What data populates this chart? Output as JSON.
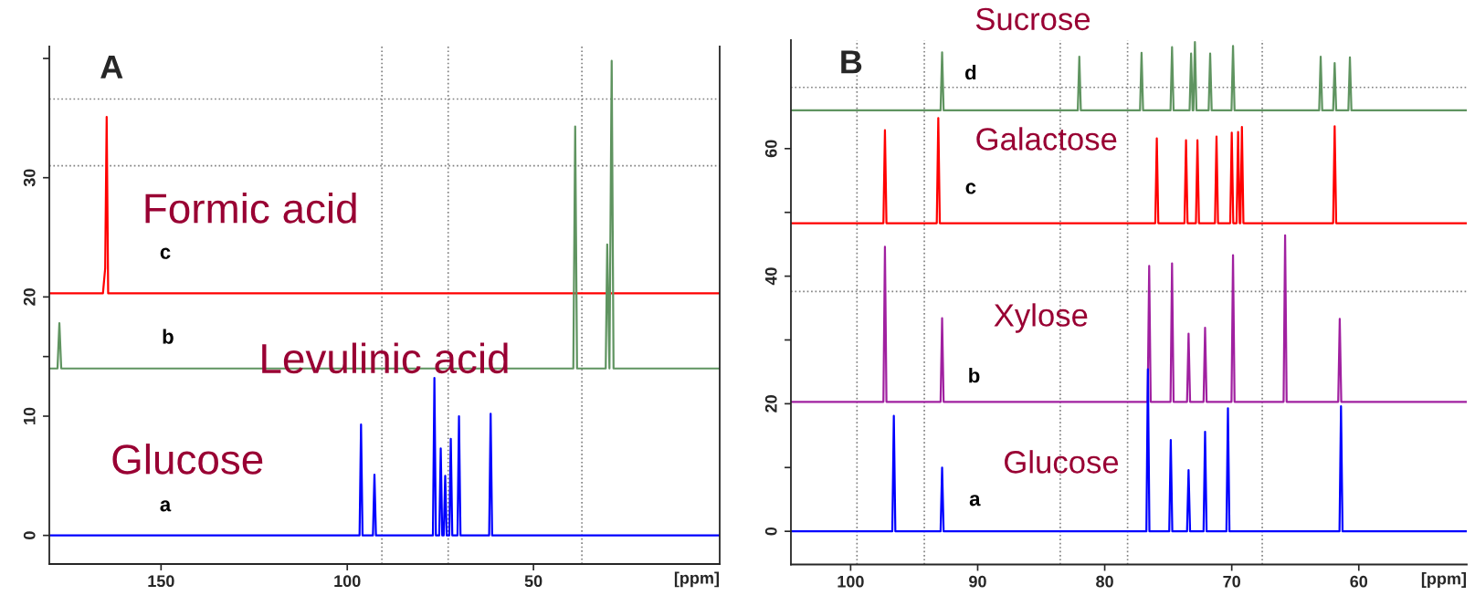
{
  "chart_data": [
    {
      "type": "line",
      "title": "A",
      "xlabel": "[ppm]",
      "xlim": [
        180,
        0
      ],
      "xticks": [
        150,
        100,
        50
      ],
      "ylim": [
        -2.4,
        41
      ],
      "yticks": [
        0,
        10,
        {
          "value": 15,
          "label": null
        },
        20,
        30,
        {
          "value": 40,
          "label": null
        }
      ],
      "grid": false,
      "legend": false,
      "marker": "none",
      "line_style": "solid",
      "ref_lines": [
        {
          "axis": "x",
          "value": 90.7,
          "color": "#808080",
          "line_style": "dotted"
        },
        {
          "axis": "x",
          "value": 72.9,
          "color": "#808080",
          "line_style": "dotted"
        },
        {
          "axis": "x",
          "value": 37,
          "color": "#808080",
          "line_style": "dotted"
        },
        {
          "axis": "y",
          "value": 36.6,
          "color": "#808080",
          "line_style": "dotted"
        },
        {
          "axis": "y",
          "value": 31,
          "color": "#808080",
          "line_style": "dotted"
        }
      ],
      "annotations": [
        "Formic acid",
        "Levulinic acid",
        "Glucose"
      ],
      "series": [
        {
          "name": "c",
          "color": "#ff0000",
          "x": [
            180,
            165.6,
            165.0,
            164.6,
            164.2,
            0
          ],
          "values": [
            20.3,
            20.3,
            22.4,
            35.1,
            20.3,
            20.3
          ]
        },
        {
          "name": "b",
          "color": "#5f9460",
          "x": [
            180,
            177.8,
            177.3,
            176.8,
            39.3,
            38.8,
            38.3,
            30.6,
            30.2,
            29.6,
            29.0,
            28.5,
            0
          ],
          "values": [
            14,
            14,
            17.8,
            14,
            14,
            34.3,
            14,
            14,
            24.4,
            14,
            39.8,
            14,
            14
          ]
        },
        {
          "name": "a",
          "color": "#0000ff",
          "x": [
            180,
            96.7,
            96.3,
            95.9,
            93.1,
            92.7,
            92.3,
            77.0,
            76.6,
            76.2,
            75.3,
            74.9,
            74.5,
            74.1,
            73.7,
            73.3,
            72.6,
            72.2,
            71.8,
            70.4,
            70.0,
            69.6,
            61.9,
            61.5,
            61.1,
            0
          ],
          "values": [
            0,
            0,
            9.3,
            0,
            0,
            5.1,
            0,
            0,
            13.2,
            0,
            0,
            7.3,
            0,
            0,
            5.0,
            0,
            0,
            8.1,
            0,
            0,
            10.0,
            0,
            0,
            10.2,
            0,
            0
          ]
        }
      ]
    },
    {
      "type": "line",
      "title": "B",
      "xlabel": "[ppm]",
      "xlim": [
        104.7,
        51.5
      ],
      "xticks": [
        100,
        90,
        80,
        70,
        60
      ],
      "ylim": [
        -5.2,
        77
      ],
      "yticks": [
        0,
        {
          "value": 10,
          "label": null
        },
        20,
        {
          "value": 30,
          "label": null
        },
        40,
        {
          "value": 50,
          "label": null
        },
        60
      ],
      "grid": false,
      "legend": false,
      "marker": "none",
      "line_style": "solid",
      "ref_lines": [
        {
          "axis": "x",
          "value": 99.5,
          "color": "#808080",
          "line_style": "dotted"
        },
        {
          "axis": "x",
          "value": 94.2,
          "color": "#808080",
          "line_style": "dotted"
        },
        {
          "axis": "x",
          "value": 83.5,
          "color": "#808080",
          "line_style": "dotted"
        },
        {
          "axis": "x",
          "value": 78.2,
          "color": "#808080",
          "line_style": "dotted"
        },
        {
          "axis": "x",
          "value": 67.6,
          "color": "#808080",
          "line_style": "dotted"
        },
        {
          "axis": "y",
          "value": 69.6,
          "color": "#808080",
          "line_style": "dotted"
        },
        {
          "axis": "y",
          "value": 37.6,
          "color": "#808080",
          "line_style": "dotted"
        }
      ],
      "annotations": [
        "Sucrose",
        "Galactose",
        "Xylose",
        "Glucose"
      ],
      "series": [
        {
          "name": "d",
          "color": "#5f9460",
          "x": [
            104.7,
            92.92,
            92.8,
            92.68,
            82.12,
            82.0,
            81.88,
            77.22,
            77.1,
            76.98,
            74.82,
            74.7,
            74.58,
            73.32,
            73.2,
            73.08,
            73.02,
            72.9,
            72.78,
            71.82,
            71.7,
            71.58,
            70.02,
            69.9,
            69.78,
            63.12,
            63.0,
            62.88,
            62.02,
            61.9,
            61.78,
            60.82,
            60.7,
            60.58,
            51.5
          ],
          "values": [
            66,
            66,
            75.1,
            66,
            66,
            74.4,
            66,
            66,
            75.0,
            66,
            66,
            75.9,
            66,
            66,
            74.9,
            66,
            66,
            76.7,
            66,
            66,
            74.9,
            66,
            66,
            76.1,
            66,
            66,
            74.4,
            66,
            66,
            73.4,
            66,
            66,
            74.3,
            66,
            66
          ]
        },
        {
          "name": "c",
          "color": "#ff0000",
          "x": [
            104.7,
            97.42,
            97.3,
            97.18,
            93.22,
            93.1,
            92.98,
            76.02,
            75.9,
            75.78,
            73.72,
            73.6,
            73.48,
            72.82,
            72.7,
            72.58,
            71.32,
            71.2,
            71.08,
            70.12,
            70.0,
            69.88,
            69.62,
            69.5,
            69.38,
            69.32,
            69.2,
            69.08,
            62.02,
            61.9,
            61.78,
            51.5
          ],
          "values": [
            48.3,
            48.3,
            62.9,
            48.3,
            48.3,
            64.8,
            48.3,
            48.3,
            61.6,
            48.3,
            48.3,
            61.3,
            48.3,
            48.3,
            61.3,
            48.3,
            48.3,
            61.9,
            48.3,
            48.3,
            62.5,
            48.3,
            48.3,
            62.6,
            48.3,
            48.3,
            63.4,
            48.3,
            48.3,
            63.5,
            48.3,
            48.3
          ]
        },
        {
          "name": "b",
          "color": "#a020a0",
          "x": [
            104.7,
            97.42,
            97.3,
            97.18,
            92.92,
            92.8,
            92.68,
            76.62,
            76.5,
            76.38,
            74.82,
            74.7,
            74.58,
            73.52,
            73.4,
            73.28,
            72.22,
            72.1,
            71.98,
            70.02,
            69.9,
            69.78,
            65.92,
            65.8,
            65.68,
            61.62,
            61.5,
            61.38,
            51.5
          ],
          "values": [
            20.3,
            20.3,
            44.6,
            20.3,
            20.3,
            33.4,
            20.3,
            20.3,
            41.6,
            20.3,
            20.3,
            42.0,
            20.3,
            20.3,
            31.0,
            20.3,
            20.3,
            31.9,
            20.3,
            20.3,
            43.3,
            20.3,
            20.3,
            46.4,
            20.3,
            20.3,
            33.3,
            20.3,
            20.3
          ]
        },
        {
          "name": "a",
          "color": "#0000ff",
          "x": [
            104.7,
            96.72,
            96.6,
            96.48,
            92.92,
            92.8,
            92.68,
            76.72,
            76.6,
            76.48,
            74.92,
            74.8,
            74.68,
            73.52,
            73.4,
            73.28,
            72.22,
            72.1,
            71.98,
            70.42,
            70.3,
            70.18,
            61.52,
            61.4,
            61.28,
            51.5
          ],
          "values": [
            0,
            0,
            18.1,
            0,
            0,
            10.0,
            0,
            0,
            25.4,
            0,
            0,
            14.3,
            0,
            0,
            9.6,
            0,
            0,
            15.6,
            0,
            0,
            19.3,
            0,
            0,
            19.6,
            0,
            0
          ]
        }
      ]
    }
  ]
}
